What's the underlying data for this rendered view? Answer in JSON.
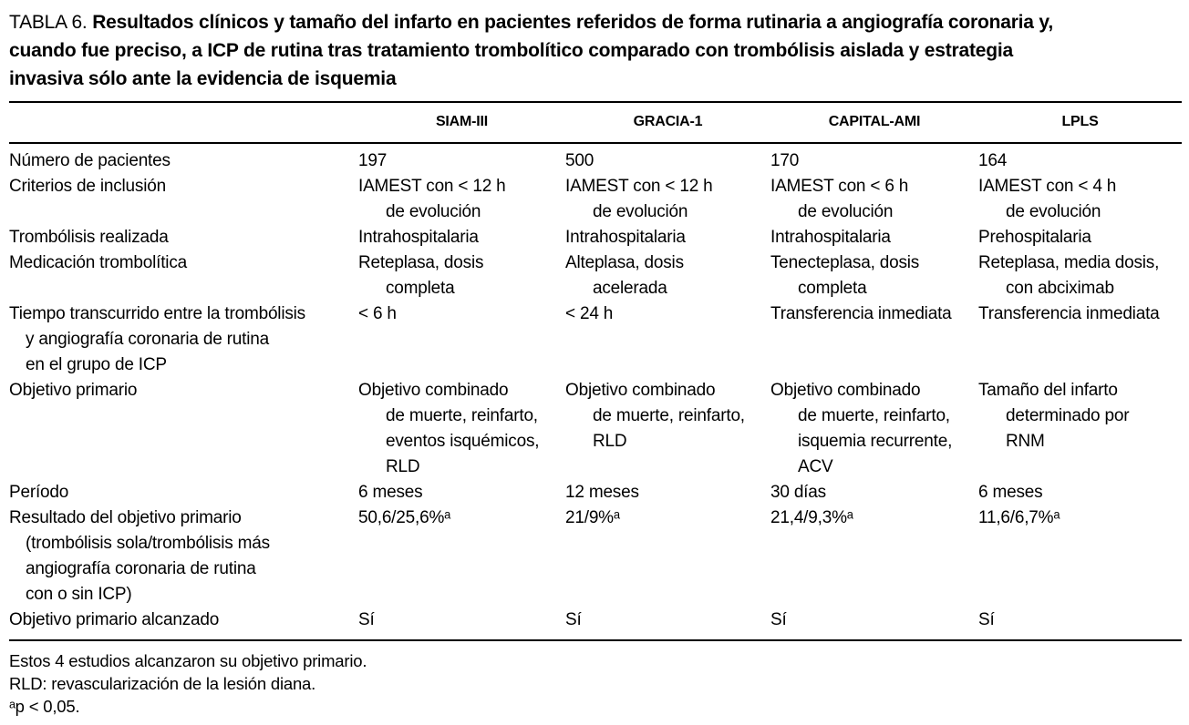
{
  "title": {
    "number": "TABLA 6.",
    "caption": "Resultados clínicos y tamaño del infarto en pacientes referidos de forma rutinaria a angiografía coronaria y, cuando fue preciso, a ICP de rutina tras tratamiento trombolítico comparado con trombólisis aislada y estrategia invasiva sólo ante la evidencia de isquemia"
  },
  "table": {
    "columns": [
      "SIAM-III",
      "GRACIA-1",
      "CAPITAL-AMI",
      "LPLS"
    ],
    "rows": [
      {
        "label": [
          "Número de pacientes"
        ],
        "cells": [
          [
            "197"
          ],
          [
            "500"
          ],
          [
            "170"
          ],
          [
            "164"
          ]
        ]
      },
      {
        "label": [
          "Criterios de inclusión"
        ],
        "cells": [
          [
            "IAMEST con < 12 h",
            "de evolución"
          ],
          [
            "IAMEST con < 12 h",
            "de evolución"
          ],
          [
            "IAMEST con < 6 h",
            "de evolución"
          ],
          [
            "IAMEST con < 4 h",
            "de evolución"
          ]
        ]
      },
      {
        "label": [
          "Trombólisis realizada"
        ],
        "cells": [
          [
            "Intrahospitalaria"
          ],
          [
            "Intrahospitalaria"
          ],
          [
            "Intrahospitalaria"
          ],
          [
            "Prehospitalaria"
          ]
        ]
      },
      {
        "label": [
          "Medicación trombolítica"
        ],
        "cells": [
          [
            "Reteplasa, dosis",
            "completa"
          ],
          [
            "Alteplasa, dosis",
            "acelerada"
          ],
          [
            "Tenecteplasa, dosis",
            "completa"
          ],
          [
            "Reteplasa, media dosis,",
            "con abciximab"
          ]
        ]
      },
      {
        "label": [
          "Tiempo transcurrido entre la trombólisis",
          "y angiografía coronaria de rutina",
          "en el grupo de ICP"
        ],
        "cells": [
          [
            "< 6 h"
          ],
          [
            "< 24 h"
          ],
          [
            "Transferencia inmediata"
          ],
          [
            "Transferencia inmediata"
          ]
        ]
      },
      {
        "label": [
          "Objetivo primario"
        ],
        "cells": [
          [
            "Objetivo combinado",
            "de muerte, reinfarto,",
            "eventos isquémicos,",
            "RLD"
          ],
          [
            "Objetivo combinado",
            "de muerte, reinfarto,",
            "RLD"
          ],
          [
            "Objetivo combinado",
            "de muerte, reinfarto,",
            "isquemia recurrente,",
            "ACV"
          ],
          [
            "Tamaño del infarto",
            "determinado por",
            "RNM"
          ]
        ]
      },
      {
        "label": [
          "Período"
        ],
        "cells": [
          [
            "6 meses"
          ],
          [
            "12 meses"
          ],
          [
            "30 días"
          ],
          [
            "6 meses"
          ]
        ]
      },
      {
        "label": [
          "Resultado del objetivo primario",
          "(trombólisis sola/trombólisis más",
          "angiografía coronaria de rutina",
          "con o sin ICP)"
        ],
        "cells": [
          [
            "50,6/25,6%ᵃ"
          ],
          [
            "21/9%ᵃ"
          ],
          [
            "21,4/9,3%ᵃ"
          ],
          [
            "11,6/6,7%ᵃ"
          ]
        ]
      },
      {
        "label": [
          "Objetivo primario alcanzado"
        ],
        "cells": [
          [
            "Sí"
          ],
          [
            "Sí"
          ],
          [
            "Sí"
          ],
          [
            "Sí"
          ]
        ]
      }
    ]
  },
  "footnotes": [
    "Estos 4 estudios alcanzaron su objetivo primario.",
    "RLD: revascularización de la lesión diana.",
    "ᵃp < 0,05."
  ]
}
